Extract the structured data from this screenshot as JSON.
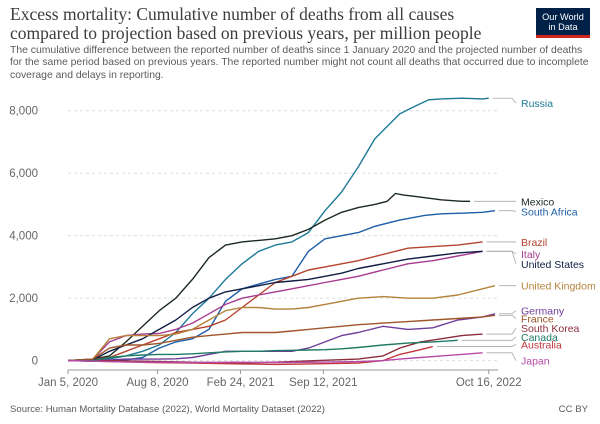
{
  "header": {
    "title": "Excess mortality: Cumulative number of deaths from all causes compared to projection based on previous years, per million people",
    "subtitle": "The cumulative difference between the reported number of deaths since 1 January 2020 and the projected number of deaths for the same period based on previous years. The reported number might not count all deaths that occurred due to incomplete coverage and delays in reporting.",
    "logo_line1": "Our World",
    "logo_line2": "in Data"
  },
  "footer": {
    "source": "Source: Human Mortality Database (2022), World Mortality Dataset (2022)",
    "license": "CC BY"
  },
  "chart_data": {
    "type": "line",
    "title": "Excess mortality: Cumulative number of deaths from all causes compared to projection based on previous years, per million people",
    "xlabel": "",
    "ylabel": "",
    "xlim": [
      0,
      1030
    ],
    "ylim": [
      -300,
      8600
    ],
    "x_unit": "days since 2020-01-05",
    "x_ticks": [
      {
        "value": 0,
        "label": "Jan 5, 2020"
      },
      {
        "value": 216,
        "label": "Aug 8, 2020"
      },
      {
        "value": 416,
        "label": "Feb 24, 2021"
      },
      {
        "value": 616,
        "label": "Sep 12, 2021"
      },
      {
        "value": 1015,
        "label": "Oct 16, 2022"
      }
    ],
    "y_ticks": [
      {
        "value": 0,
        "label": "0"
      },
      {
        "value": 2000,
        "label": "2,000"
      },
      {
        "value": 4000,
        "label": "4,000"
      },
      {
        "value": 6000,
        "label": "6,000"
      },
      {
        "value": 8000,
        "label": "8,000"
      }
    ],
    "grid": true,
    "legend_position": "right (labels at line ends)",
    "series": [
      {
        "name": "Russia",
        "color": "#1d7a97",
        "label_value": 8250,
        "x": [
          0,
          60,
          100,
          140,
          180,
          220,
          260,
          300,
          340,
          380,
          420,
          460,
          500,
          540,
          580,
          620,
          660,
          700,
          740,
          770,
          800,
          830,
          870,
          900,
          950,
          1000,
          1015
        ],
        "values": [
          0,
          20,
          60,
          150,
          300,
          500,
          900,
          1500,
          2000,
          2600,
          3100,
          3500,
          3700,
          3800,
          4100,
          4800,
          5400,
          6200,
          7100,
          7500,
          7900,
          8100,
          8350,
          8380,
          8400,
          8380,
          8400
        ]
      },
      {
        "name": "Mexico",
        "color": "#1b2a21",
        "label_value": 5100,
        "x": [
          0,
          60,
          100,
          140,
          180,
          220,
          260,
          300,
          340,
          380,
          420,
          460,
          500,
          540,
          580,
          620,
          660,
          700,
          740,
          770,
          790,
          810,
          840,
          870,
          900,
          950,
          970
        ],
        "values": [
          0,
          50,
          150,
          600,
          1100,
          1600,
          2000,
          2600,
          3300,
          3700,
          3800,
          3850,
          3900,
          4000,
          4200,
          4500,
          4750,
          4900,
          5000,
          5100,
          5350,
          5300,
          5250,
          5200,
          5150,
          5100,
          5100
        ]
      },
      {
        "name": "South Africa",
        "color": "#1e5ea8",
        "label_value": 4780,
        "x": [
          0,
          60,
          100,
          140,
          180,
          220,
          260,
          300,
          340,
          380,
          420,
          460,
          500,
          540,
          580,
          620,
          660,
          700,
          740,
          800,
          860,
          900,
          950,
          1000,
          1030
        ],
        "values": [
          0,
          -20,
          0,
          20,
          100,
          400,
          600,
          700,
          1000,
          1900,
          2300,
          2450,
          2600,
          2700,
          3500,
          3900,
          4000,
          4100,
          4300,
          4500,
          4650,
          4700,
          4720,
          4750,
          4800
        ]
      },
      {
        "name": "Brazil",
        "color": "#b5432b",
        "label_value": 3800,
        "x": [
          0,
          60,
          100,
          140,
          180,
          220,
          260,
          300,
          340,
          380,
          420,
          460,
          500,
          540,
          580,
          620,
          660,
          700,
          760,
          820,
          880,
          940,
          1000
        ],
        "values": [
          0,
          40,
          100,
          300,
          500,
          700,
          900,
          1000,
          1100,
          1300,
          1700,
          2100,
          2500,
          2700,
          2900,
          3000,
          3100,
          3200,
          3400,
          3600,
          3650,
          3700,
          3800
        ]
      },
      {
        "name": "Italy",
        "color": "#a83a8f",
        "label_value": 3420,
        "x": [
          0,
          60,
          100,
          140,
          180,
          220,
          260,
          300,
          340,
          380,
          420,
          460,
          500,
          540,
          580,
          620,
          660,
          700,
          760,
          820,
          880,
          940,
          1000
        ],
        "values": [
          0,
          50,
          600,
          800,
          850,
          870,
          1000,
          1200,
          1500,
          1800,
          2000,
          2100,
          2200,
          2300,
          2400,
          2500,
          2600,
          2700,
          2900,
          3100,
          3200,
          3350,
          3500
        ]
      },
      {
        "name": "United States",
        "color": "#101d44",
        "label_value": 3100,
        "x": [
          0,
          60,
          100,
          140,
          180,
          220,
          260,
          300,
          340,
          380,
          420,
          460,
          500,
          540,
          580,
          620,
          660,
          700,
          760,
          820,
          880,
          940,
          1000
        ],
        "values": [
          0,
          30,
          300,
          500,
          700,
          1000,
          1300,
          1700,
          2000,
          2200,
          2300,
          2400,
          2500,
          2550,
          2600,
          2700,
          2800,
          2950,
          3100,
          3250,
          3350,
          3450,
          3500
        ]
      },
      {
        "name": "United Kingdom",
        "color": "#b4823a",
        "label_value": 2400,
        "x": [
          0,
          60,
          100,
          140,
          180,
          220,
          260,
          300,
          340,
          380,
          420,
          460,
          500,
          540,
          580,
          620,
          660,
          700,
          760,
          820,
          880,
          940,
          1000,
          1030
        ],
        "values": [
          0,
          50,
          700,
          800,
          800,
          800,
          850,
          1000,
          1300,
          1600,
          1700,
          1700,
          1650,
          1650,
          1700,
          1800,
          1900,
          2000,
          2050,
          2000,
          2000,
          2100,
          2300,
          2400
        ]
      },
      {
        "name": "Germany",
        "color": "#6e3e9a",
        "label_value": 1600,
        "x": [
          0,
          60,
          100,
          140,
          180,
          220,
          260,
          300,
          340,
          380,
          420,
          460,
          500,
          540,
          580,
          620,
          660,
          700,
          760,
          820,
          880,
          940,
          1000,
          1030
        ],
        "values": [
          0,
          0,
          20,
          50,
          50,
          50,
          60,
          100,
          200,
          300,
          300,
          300,
          300,
          300,
          400,
          600,
          800,
          900,
          1100,
          1000,
          1050,
          1300,
          1400,
          1500
        ]
      },
      {
        "name": "France",
        "color": "#a0552a",
        "label_value": 1350,
        "x": [
          0,
          60,
          100,
          140,
          180,
          220,
          260,
          300,
          340,
          380,
          420,
          460,
          500,
          540,
          580,
          620,
          660,
          700,
          760,
          820,
          880,
          940,
          1000,
          1030
        ],
        "values": [
          0,
          50,
          400,
          500,
          500,
          550,
          650,
          750,
          800,
          850,
          900,
          900,
          900,
          950,
          1000,
          1050,
          1100,
          1150,
          1200,
          1250,
          1300,
          1350,
          1400,
          1450
        ]
      },
      {
        "name": "South Korea",
        "color": "#8c2e3d",
        "label_value": 1040,
        "x": [
          0,
          100,
          200,
          300,
          400,
          500,
          600,
          700,
          760,
          800,
          850,
          900,
          950,
          1000
        ],
        "values": [
          0,
          0,
          -20,
          -50,
          -80,
          -50,
          0,
          50,
          150,
          400,
          600,
          700,
          800,
          850
        ]
      },
      {
        "name": "Canada",
        "color": "#1f7a64",
        "label_value": 760,
        "x": [
          0,
          60,
          100,
          140,
          180,
          220,
          260,
          300,
          340,
          380,
          420,
          460,
          500,
          540,
          580,
          620,
          660,
          700,
          760,
          820,
          880,
          940
        ],
        "values": [
          0,
          0,
          100,
          150,
          180,
          200,
          200,
          220,
          250,
          280,
          300,
          300,
          320,
          330,
          340,
          350,
          380,
          420,
          500,
          560,
          600,
          650
        ]
      },
      {
        "name": "Australia",
        "color": "#c1373f",
        "label_value": 520,
        "x": [
          0,
          100,
          200,
          300,
          400,
          500,
          600,
          700,
          760,
          800,
          850,
          880
        ],
        "values": [
          0,
          -30,
          -60,
          -80,
          -100,
          -120,
          -100,
          -80,
          0,
          200,
          350,
          450
        ]
      },
      {
        "name": "Japan",
        "color": "#b64aa7",
        "label_value": 0,
        "x": [
          0,
          100,
          200,
          300,
          400,
          500,
          600,
          700,
          760,
          800,
          850,
          900,
          950,
          1000
        ],
        "values": [
          0,
          -30,
          -50,
          -60,
          -50,
          -60,
          -50,
          -30,
          0,
          50,
          100,
          150,
          200,
          250
        ]
      }
    ]
  }
}
